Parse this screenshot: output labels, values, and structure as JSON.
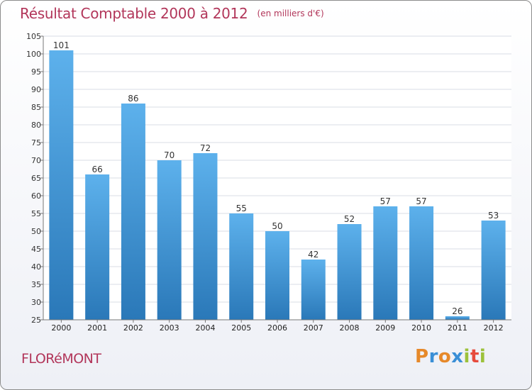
{
  "header": {
    "title": "Résultat Comptable 2000 à 2012",
    "unit": "(en milliers d'€)"
  },
  "footer": {
    "commune": "FLORéMONT",
    "logo_text": "Proxiti",
    "logo_colors": [
      "#e6892a",
      "#3a8fd6",
      "#e6892a",
      "#3a8fd6",
      "#9cc13a",
      "#e64a3c",
      "#9cc13a"
    ]
  },
  "colors": {
    "title": "#b2365a",
    "bar_top": "#5db1ec",
    "bar_bottom": "#2a78b8",
    "grid": "#d9dde4"
  },
  "chart_data": {
    "type": "bar",
    "title": "Résultat Comptable 2000 à 2012",
    "categories": [
      "2000",
      "2001",
      "2002",
      "2003",
      "2004",
      "2005",
      "2006",
      "2007",
      "2008",
      "2009",
      "2010",
      "2011",
      "2012"
    ],
    "values": [
      101,
      66,
      86,
      70,
      72,
      55,
      50,
      42,
      52,
      57,
      57,
      26,
      53
    ],
    "ylim": [
      25,
      105
    ],
    "yticks": [
      25,
      30,
      35,
      40,
      45,
      50,
      55,
      60,
      65,
      70,
      75,
      80,
      85,
      90,
      95,
      100,
      105
    ],
    "grid": true,
    "xlabel": "",
    "ylabel": ""
  }
}
